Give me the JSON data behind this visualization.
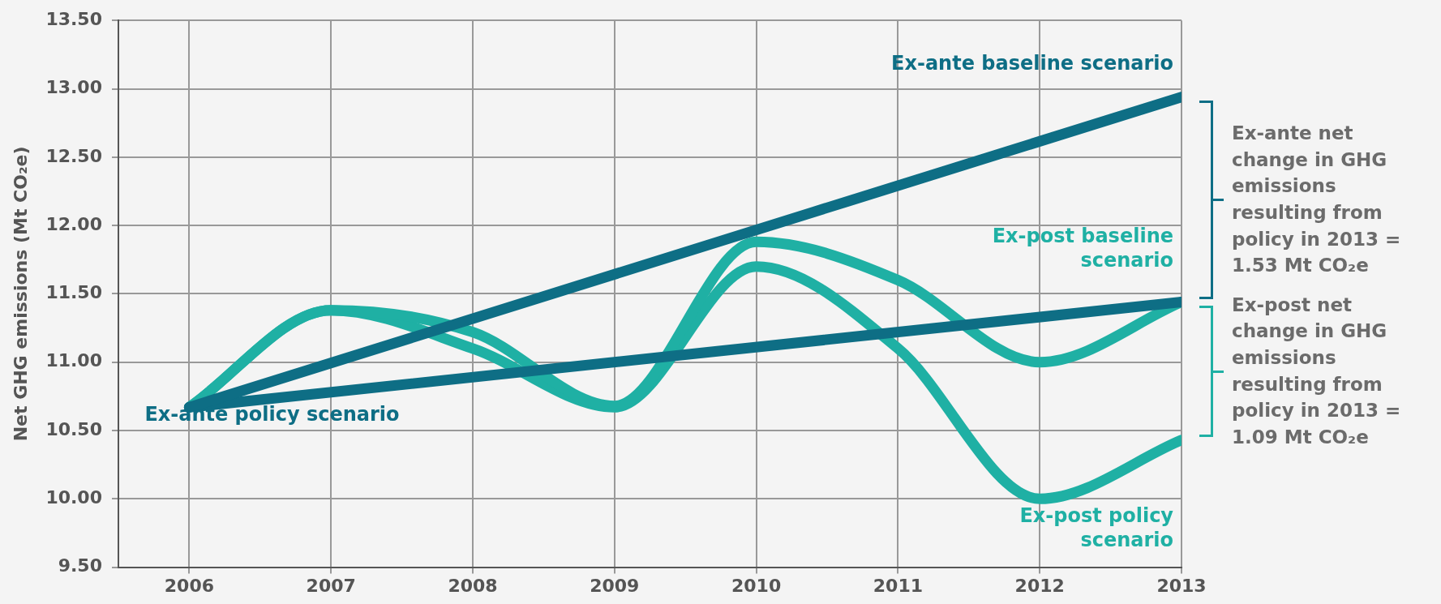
{
  "chart_data": {
    "type": "line",
    "ylabel": "Net GHG emissions (Mt CO₂e)",
    "xlim": [
      2005.5,
      2013
    ],
    "xticks": [
      2006,
      2007,
      2008,
      2009,
      2010,
      2011,
      2012,
      2013
    ],
    "ylim": [
      9.5,
      13.5
    ],
    "yticks": [
      {
        "value": 9.5,
        "label": "9.50"
      },
      {
        "value": 10,
        "label": "10.00"
      },
      {
        "value": 10.5,
        "label": "10.50"
      },
      {
        "value": 11,
        "label": "11.00"
      },
      {
        "value": 11.5,
        "label": "11.50"
      },
      {
        "value": 12,
        "label": "12.00"
      },
      {
        "value": 12.5,
        "label": "12.50"
      },
      {
        "value": 13,
        "label": "13.00"
      },
      {
        "value": 13.5,
        "label": "13.50"
      }
    ],
    "grid": true,
    "legend": false,
    "marker": "none",
    "line_style": "solid",
    "series": [
      {
        "name": "Ex-ante baseline scenario",
        "color": "#0e6e85",
        "x": [
          2006,
          2013
        ],
        "values": [
          10.67,
          12.94
        ]
      },
      {
        "name": "Ex-ante policy scenario",
        "color": "#0e6e85",
        "x": [
          2006,
          2013
        ],
        "values": [
          10.67,
          11.44
        ]
      },
      {
        "name": "Ex-post baseline scenario",
        "color": "#1fb0a4",
        "x": [
          2006,
          2007,
          2008,
          2009,
          2010,
          2011,
          2012,
          2013
        ],
        "values": [
          10.67,
          11.38,
          11.22,
          10.68,
          11.88,
          11.6,
          11.0,
          11.44
        ]
      },
      {
        "name": "Ex-post policy scenario",
        "color": "#1fb0a4",
        "x": [
          2006,
          2007,
          2008,
          2009,
          2010,
          2011,
          2012,
          2013
        ],
        "values": [
          10.67,
          11.38,
          11.1,
          10.67,
          11.7,
          11.1,
          10.0,
          10.43
        ]
      }
    ],
    "annotations": [
      "Ex-ante net change in GHG emissions resulting from policy in 2013 = 1.53 Mt CO₂e",
      "Ex-post net change in GHG emissions resulting from policy in 2013 = 1.09 Mt CO₂e"
    ]
  }
}
